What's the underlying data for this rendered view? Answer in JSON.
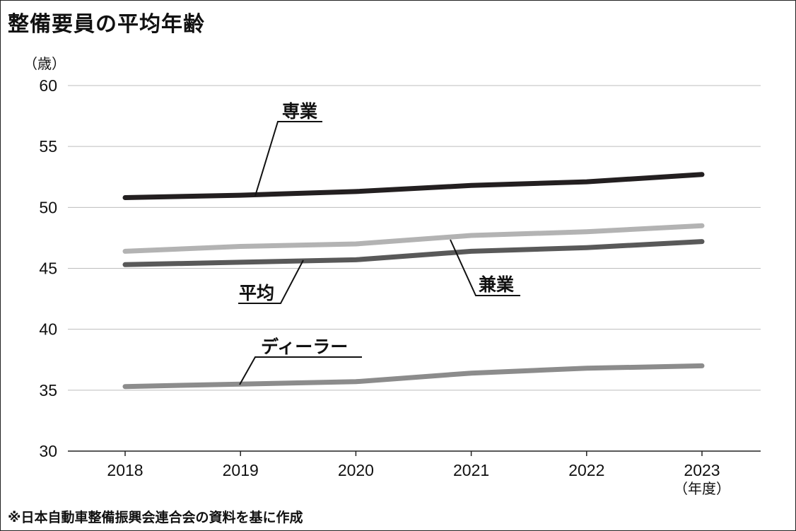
{
  "title": "整備要員の平均年齢",
  "footnote": "※日本自動車整備振興会連合会の資料を基に作成",
  "chart_data": {
    "type": "line",
    "title": "整備要員の平均年齢",
    "xlabel": "（年度）",
    "ylabel": "（歳）",
    "categories": [
      "2018",
      "2019",
      "2020",
      "2021",
      "2022",
      "2023"
    ],
    "ylim": [
      30,
      60
    ],
    "yticks": [
      30,
      35,
      40,
      45,
      50,
      55,
      60
    ],
    "grid": true,
    "legend": "inline labels",
    "series": [
      {
        "name": "専業",
        "color": "#231f20",
        "values": [
          50.8,
          51.0,
          51.3,
          51.8,
          52.1,
          52.7
        ]
      },
      {
        "name": "兼業",
        "color": "#b3b3b3",
        "values": [
          46.4,
          46.8,
          47.0,
          47.7,
          48.0,
          48.5
        ]
      },
      {
        "name": "平均",
        "color": "#595959",
        "values": [
          45.3,
          45.5,
          45.7,
          46.4,
          46.7,
          47.2
        ]
      },
      {
        "name": "ディーラー",
        "color": "#8c8c8c",
        "values": [
          35.3,
          35.5,
          35.7,
          36.4,
          36.8,
          37.0
        ]
      }
    ]
  }
}
